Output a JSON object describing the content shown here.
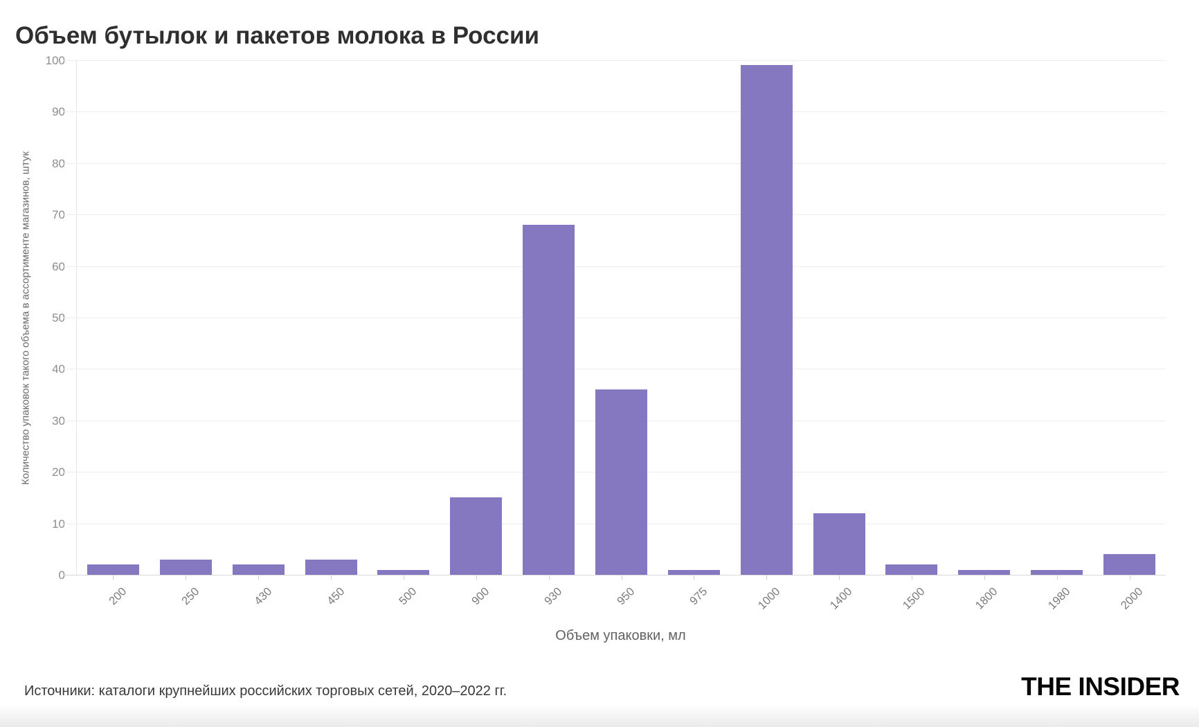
{
  "chart_data": {
    "type": "bar",
    "title": "Объем бутылок и пакетов молока в России",
    "categories": [
      "200",
      "250",
      "430",
      "450",
      "500",
      "900",
      "930",
      "950",
      "975",
      "1000",
      "1400",
      "1500",
      "1800",
      "1980",
      "2000"
    ],
    "values": [
      2,
      3,
      2,
      3,
      1,
      15,
      68,
      36,
      1,
      99,
      12,
      2,
      1,
      1,
      4
    ],
    "xlabel": "Объем упаковки, мл",
    "ylabel": "Количество упаковок такого объема в ассортименте магазинов, штук",
    "ylim": [
      0,
      100
    ],
    "ytick_step": 10,
    "grid": true,
    "legend": "none",
    "bar_color": "#8678c0"
  },
  "footer": {
    "source": "Источники: каталоги крупнейших российских торговых сетей, 2020–2022 гг.",
    "logo": "THE INSIDER"
  }
}
